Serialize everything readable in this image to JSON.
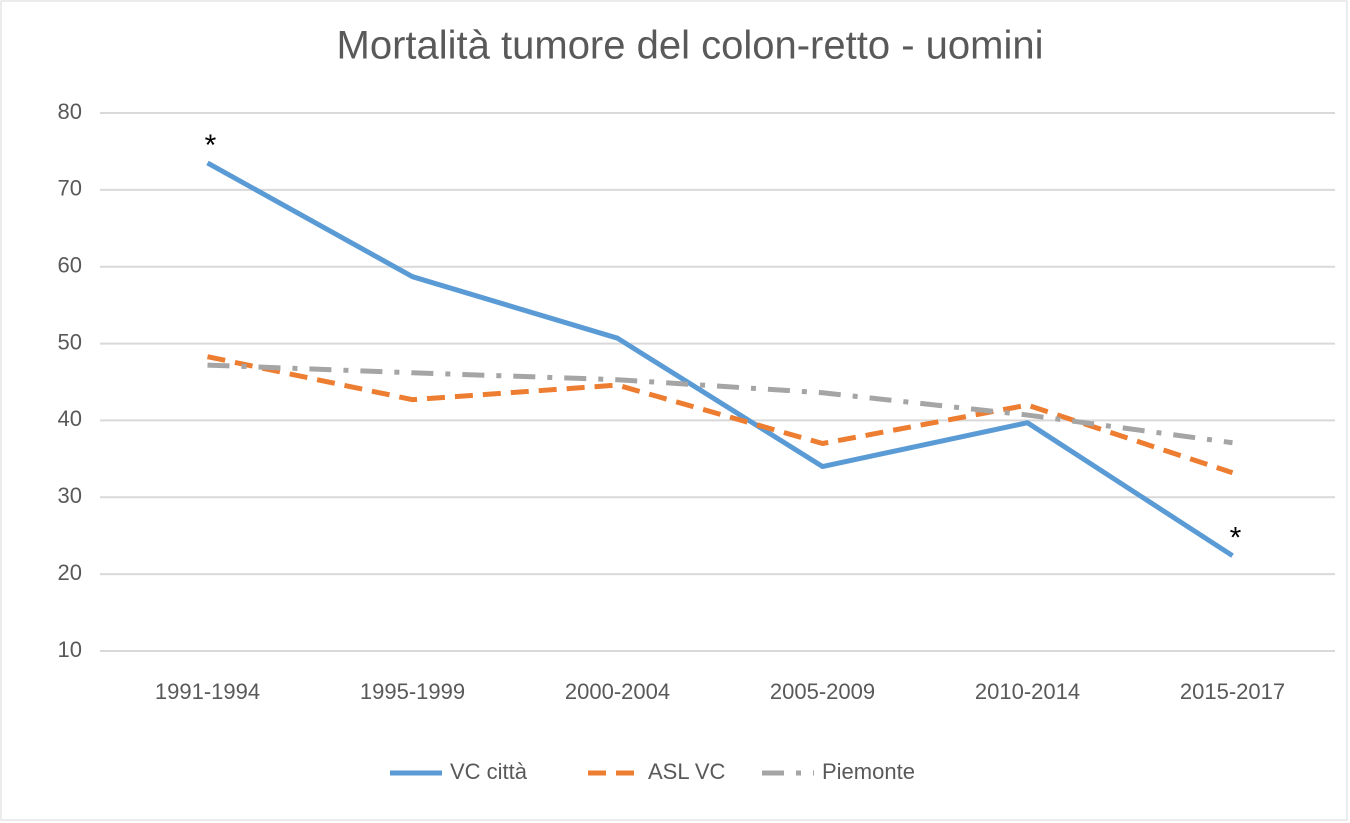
{
  "chart_data": {
    "type": "line",
    "title": "Mortalità tumore del colon-retto - uomini",
    "categories": [
      "1991-1994",
      "1995-1999",
      "2000-2004",
      "2005-2009",
      "2010-2014",
      "2015-2017"
    ],
    "series": [
      {
        "name": "VC città",
        "color": "#5b9bd5",
        "style": "solid",
        "values": [
          73.5,
          58.7,
          50.7,
          34,
          39.7,
          22.4
        ]
      },
      {
        "name": "ASL VC",
        "color": "#ed7d31",
        "style": "dash",
        "values": [
          48.3,
          42.7,
          44.6,
          37,
          42,
          33.2
        ]
      },
      {
        "name": "Piemonte",
        "color": "#a5a5a5",
        "style": "dashdot",
        "values": [
          47.2,
          46.2,
          45.3,
          43.6,
          40.7,
          37.1
        ]
      }
    ],
    "annotations": [
      {
        "text": "*",
        "series": "VC città",
        "category": "1991-1994"
      },
      {
        "text": "*",
        "series": "VC città",
        "category": "2015-2017"
      }
    ],
    "ylim": [
      10,
      80
    ],
    "yticks": [
      10,
      20,
      30,
      40,
      50,
      60,
      70,
      80
    ],
    "grid": true,
    "legend": "bottom"
  }
}
